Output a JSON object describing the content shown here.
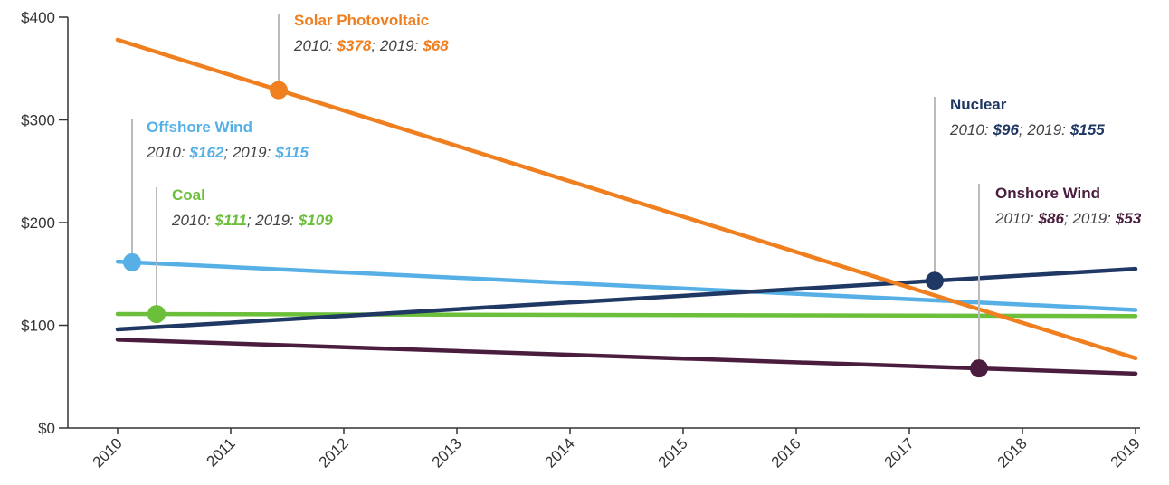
{
  "chart_data": {
    "type": "line",
    "x": [
      2010,
      2019
    ],
    "xlim": [
      2010,
      2019
    ],
    "xticks": [
      2010,
      2011,
      2012,
      2013,
      2014,
      2015,
      2016,
      2017,
      2018,
      2019
    ],
    "ylim": [
      0,
      400
    ],
    "yticks": [
      {
        "value": 0,
        "label": "$0"
      },
      {
        "value": 100,
        "label": "$100"
      },
      {
        "value": 200,
        "label": "$200"
      },
      {
        "value": 300,
        "label": "$300"
      },
      {
        "value": 400,
        "label": "$400"
      }
    ],
    "annotation_parts": [
      "2010:",
      "; 2019:"
    ],
    "series": [
      {
        "name": "Onshore Wind",
        "color": "#4a1d3f",
        "values": [
          86,
          53
        ],
        "value_labels": [
          "$86",
          "$53"
        ]
      },
      {
        "name": "Coal",
        "color": "#6cbf3a",
        "values": [
          111,
          109
        ],
        "value_labels": [
          "$111",
          "$109"
        ]
      },
      {
        "name": "Offshore Wind",
        "color": "#56b0e6",
        "values": [
          162,
          115
        ],
        "value_labels": [
          "$162",
          "$115"
        ]
      },
      {
        "name": "Nuclear",
        "color": "#1f3864",
        "values": [
          96,
          155
        ],
        "value_labels": [
          "$96",
          "$155"
        ]
      },
      {
        "name": "Solar Photovoltaic",
        "color": "#f07f20",
        "values": [
          378,
          68
        ],
        "value_labels": [
          "$378",
          "$68"
        ]
      }
    ]
  }
}
